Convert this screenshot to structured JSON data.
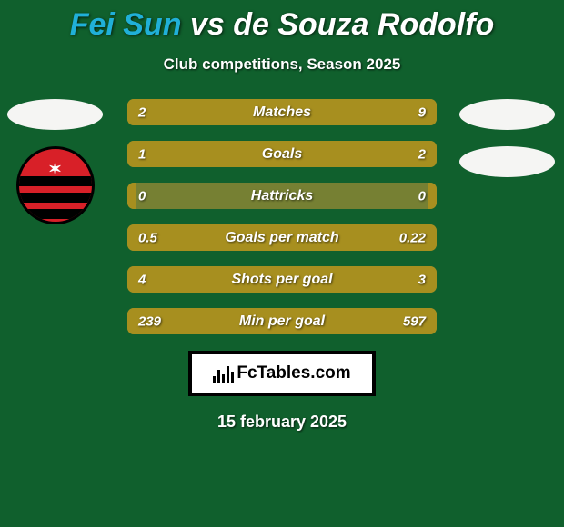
{
  "background_color": "#10602d",
  "accent_color": "#a78f1f",
  "bar_bg_color": "#768033",
  "title": {
    "left": "Fei Sun",
    "vs": "vs",
    "right": "de Souza Rodolfo",
    "left_color": "#20b0d8",
    "right_color": "#ffffff"
  },
  "subtitle": "Club competitions, Season 2025",
  "rows": [
    {
      "name": "matches",
      "label": "Matches",
      "left_val": "2",
      "right_val": "9",
      "left_pct": 18,
      "right_pct": 82
    },
    {
      "name": "goals",
      "label": "Goals",
      "left_val": "1",
      "right_val": "2",
      "left_pct": 33,
      "right_pct": 67
    },
    {
      "name": "hattricks",
      "label": "Hattricks",
      "left_val": "0",
      "right_val": "0",
      "left_pct": 3,
      "right_pct": 3
    },
    {
      "name": "goals-per-match",
      "label": "Goals per match",
      "left_val": "0.5",
      "right_val": "0.22",
      "left_pct": 69,
      "right_pct": 31
    },
    {
      "name": "shots-per-goal",
      "label": "Shots per goal",
      "left_val": "4",
      "right_val": "3",
      "left_pct": 57,
      "right_pct": 43
    },
    {
      "name": "min-per-goal",
      "label": "Min per goal",
      "left_val": "239",
      "right_val": "597",
      "left_pct": 29,
      "right_pct": 71
    }
  ],
  "footer_brand": "FcTables.com",
  "date": "15 february 2025"
}
